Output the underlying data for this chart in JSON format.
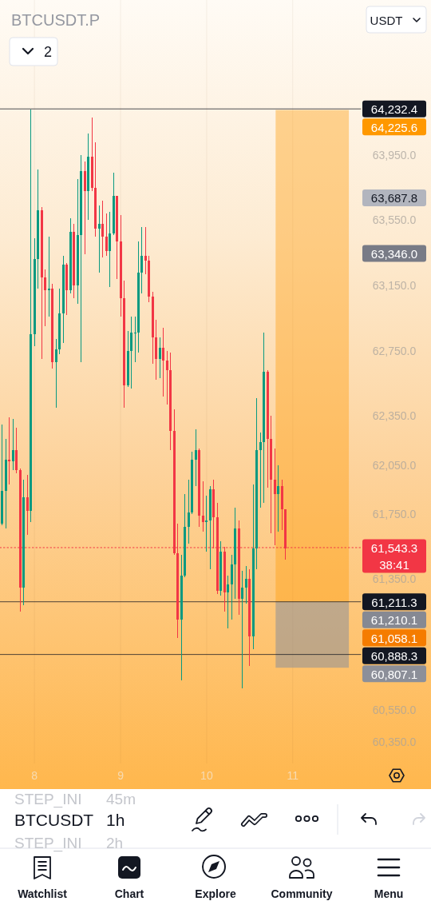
{
  "chart_data": {
    "type": "candlestick",
    "title": "BTCUSDT.P",
    "ylabel": "USDT",
    "x": [
      7.625,
      7.6667,
      7.7083,
      7.75,
      7.7917,
      7.8333,
      7.875,
      7.9167,
      7.9583,
      8,
      8.0417,
      8.0833,
      8.125,
      8.1667,
      8.2083,
      8.25,
      8.2917,
      8.3333,
      8.375,
      8.4167,
      8.4583,
      8.5,
      8.5417,
      8.5833,
      8.625,
      8.6667,
      8.7083,
      8.75,
      8.7917,
      8.8333,
      8.875,
      8.9167,
      8.9583,
      9,
      9.0417,
      9.0833,
      9.125,
      9.1667,
      9.2083,
      9.25,
      9.2917,
      9.3333,
      9.375,
      9.4167,
      9.4583,
      9.5,
      9.5417,
      9.5833,
      9.625,
      9.6667,
      9.7083,
      9.75,
      9.7917,
      9.8333,
      9.875,
      9.9167,
      9.9583,
      10,
      10.0417,
      10.0833,
      10.125,
      10.1667,
      10.2083,
      10.25,
      10.2917,
      10.3333,
      10.375,
      10.4167,
      10.4583,
      10.5,
      10.5417,
      10.5833,
      10.625,
      10.6667,
      10.7083,
      10.75,
      10.7917,
      10.8333,
      10.875,
      10.9167
    ],
    "ohlc": [
      [
        61690,
        62300,
        61680,
        61890
      ],
      [
        61890,
        62210,
        61660,
        62080
      ],
      [
        62080,
        62340,
        61930,
        62070
      ],
      [
        62070,
        62330,
        62020,
        62140
      ],
      [
        62140,
        62280,
        62000,
        62020
      ],
      [
        62020,
        62030,
        61150,
        61300
      ],
      [
        61300,
        61960,
        61190,
        61850
      ],
      [
        61850,
        61990,
        61620,
        61770
      ],
      [
        61770,
        64230,
        61700,
        62850
      ],
      [
        62850,
        63440,
        62780,
        63310
      ],
      [
        63310,
        63860,
        63130,
        63610
      ],
      [
        63610,
        63630,
        62700,
        63200
      ],
      [
        63200,
        63250,
        62900,
        63120
      ],
      [
        63120,
        63450,
        62960,
        63130
      ],
      [
        63130,
        63160,
        62640,
        62680
      ],
      [
        62680,
        62820,
        62400,
        62760
      ],
      [
        62760,
        63130,
        62730,
        62980
      ],
      [
        62980,
        63330,
        62800,
        63280
      ],
      [
        63280,
        63290,
        62970,
        63120
      ],
      [
        63120,
        63560,
        63100,
        63480
      ],
      [
        63480,
        63530,
        63070,
        63150
      ],
      [
        63150,
        63800,
        63040,
        63460
      ],
      [
        63460,
        63950,
        62680,
        63850
      ],
      [
        63850,
        63910,
        63340,
        63730
      ],
      [
        63730,
        64080,
        63550,
        63940
      ],
      [
        63940,
        64180,
        63730,
        63750
      ],
      [
        63750,
        64030,
        63450,
        63500
      ],
      [
        63500,
        63640,
        63230,
        63530
      ],
      [
        63530,
        63670,
        63320,
        63450
      ],
      [
        63450,
        63590,
        63330,
        63360
      ],
      [
        63360,
        63600,
        63140,
        63470
      ],
      [
        63470,
        63840,
        63460,
        63700
      ],
      [
        63700,
        63700,
        63190,
        63420
      ],
      [
        63420,
        63580,
        62960,
        63070
      ],
      [
        63070,
        63180,
        62400,
        62540
      ],
      [
        62540,
        62870,
        62530,
        62750
      ],
      [
        62750,
        62960,
        62520,
        62860
      ],
      [
        62860,
        62960,
        62680,
        62860
      ],
      [
        62860,
        63420,
        62740,
        63230
      ],
      [
        63230,
        63510,
        63100,
        63330
      ],
      [
        63330,
        63510,
        63220,
        63300
      ],
      [
        63300,
        63330,
        63050,
        63080
      ],
      [
        63080,
        63110,
        62670,
        62830
      ],
      [
        62830,
        62940,
        62570,
        62700
      ],
      [
        62700,
        62830,
        62580,
        62770
      ],
      [
        62770,
        62890,
        62470,
        62690
      ],
      [
        62690,
        62750,
        62420,
        62630
      ],
      [
        62630,
        62740,
        62140,
        62260
      ],
      [
        62260,
        62390,
        61500,
        61510
      ],
      [
        61510,
        61690,
        60990,
        61100
      ],
      [
        61100,
        61500,
        60730,
        61370
      ],
      [
        61370,
        61870,
        61360,
        61670
      ],
      [
        61670,
        61960,
        61570,
        61760
      ],
      [
        61760,
        62130,
        61750,
        62080
      ],
      [
        62080,
        62270,
        61920,
        62140
      ],
      [
        62140,
        62150,
        61670,
        61740
      ],
      [
        61740,
        61950,
        61640,
        61700
      ],
      [
        61700,
        61860,
        61520,
        61710
      ],
      [
        61710,
        61920,
        61410,
        61900
      ],
      [
        61900,
        61960,
        61540,
        61730
      ],
      [
        61730,
        61820,
        61260,
        61280
      ],
      [
        61280,
        61580,
        61250,
        61520
      ],
      [
        61520,
        61550,
        61150,
        61270
      ],
      [
        61270,
        61370,
        61050,
        61320
      ],
      [
        61320,
        61500,
        61100,
        61440
      ],
      [
        61440,
        61790,
        61230,
        61660
      ],
      [
        61660,
        61710,
        61130,
        61230
      ],
      [
        61230,
        61400,
        60680,
        61300
      ],
      [
        61300,
        61430,
        61200,
        61350
      ],
      [
        61350,
        61410,
        60820,
        61000
      ],
      [
        61000,
        61930,
        60920,
        61540
      ],
      [
        61540,
        62460,
        61410,
        62140
      ],
      [
        62140,
        62250,
        61790,
        62190
      ],
      [
        62190,
        62860,
        61820,
        62620
      ],
      [
        62620,
        62630,
        61910,
        62210
      ],
      [
        62210,
        62350,
        61630,
        61960
      ],
      [
        61960,
        62150,
        61560,
        61870
      ],
      [
        61870,
        62050,
        61640,
        61920
      ],
      [
        61920,
        61960,
        61650,
        61780
      ],
      [
        61780,
        61780,
        61470,
        61540
      ]
    ],
    "colors": [
      "#089981",
      "#089981",
      "#f23645",
      "#089981",
      "#f23645",
      "#f23645",
      "#089981",
      "#f23645",
      "#089981",
      "#089981",
      "#089981",
      "#f23645",
      "#f23645",
      "#089981",
      "#f23645",
      "#089981",
      "#089981",
      "#089981",
      "#f23645",
      "#089981",
      "#f23645",
      "#089981",
      "#089981",
      "#f23645",
      "#089981",
      "#f23645",
      "#f23645",
      "#089981",
      "#f23645",
      "#f23645",
      "#089981",
      "#089981",
      "#f23645",
      "#f23645",
      "#f23645",
      "#089981",
      "#089981",
      "#089981",
      "#089981",
      "#089981",
      "#f23645",
      "#f23645",
      "#f23645",
      "#f23645",
      "#089981",
      "#f23645",
      "#f23645",
      "#f23645",
      "#f23645",
      "#f23645",
      "#089981",
      "#089981",
      "#089981",
      "#089981",
      "#089981",
      "#f23645",
      "#f23645",
      "#089981",
      "#089981",
      "#f23645",
      "#f23645",
      "#089981",
      "#f23645",
      "#089981",
      "#089981",
      "#089981",
      "#f23645",
      "#089981",
      "#089981",
      "#f23645",
      "#089981",
      "#089981",
      "#089981",
      "#089981",
      "#f23645",
      "#f23645",
      "#f23645",
      "#089981",
      "#f23645",
      "#f23645"
    ],
    "xlim": [
      7.6,
      11.79
    ],
    "xticks": [
      8,
      9,
      10,
      11
    ],
    "ylim": [
      60220,
      64900
    ],
    "yticks": [
      {
        "value": 63950,
        "label": "63,950.0"
      },
      {
        "value": 63550,
        "label": "63,550.0"
      },
      {
        "value": 63150,
        "label": "63,150.0"
      },
      {
        "value": 62750,
        "label": "62,750.0"
      },
      {
        "value": 62350,
        "label": "62,350.0"
      },
      {
        "value": 62050,
        "label": "62,050.0"
      },
      {
        "value": 61750,
        "label": "61,750.0"
      },
      {
        "value": 61350,
        "label": "61,350.0"
      },
      {
        "value": 60550,
        "label": "60,550.0"
      },
      {
        "value": 60350,
        "label": "60,350.0"
      }
    ],
    "grid": "x",
    "ref_lines": [
      {
        "axis": "y",
        "value": 64232.4,
        "label": "64,232.4",
        "color": "#131722"
      },
      {
        "axis": "y",
        "value": 61543.3,
        "label": "61,543.3\n38:41",
        "color": "#f23645",
        "line_style": "dotted"
      },
      {
        "axis": "y",
        "value": 61211.3,
        "label": "61,211.3",
        "color": "#131722"
      },
      {
        "axis": "y",
        "value": 60888.3,
        "label": "60,888.3",
        "color": "#131722"
      }
    ],
    "bands": [
      {
        "axis": "y",
        "from": 61210.1,
        "to": 64225.6,
        "label": "64,225.6",
        "color": "#ff9800"
      },
      {
        "axis": "y",
        "from": 60807.1,
        "to": 61210.1,
        "label": "60,807.1",
        "color": "#8c8f99"
      }
    ],
    "annotations": [
      "2",
      "STEP_INI",
      "45m",
      "BTCUSDT",
      "1h",
      "STEP_INI",
      "2h",
      "Watchlist",
      "Chart",
      "Explore",
      "Community",
      "Menu",
      "63,687.8",
      "63,346.0",
      "61,210.1",
      "61,058.1"
    ]
  }
}
